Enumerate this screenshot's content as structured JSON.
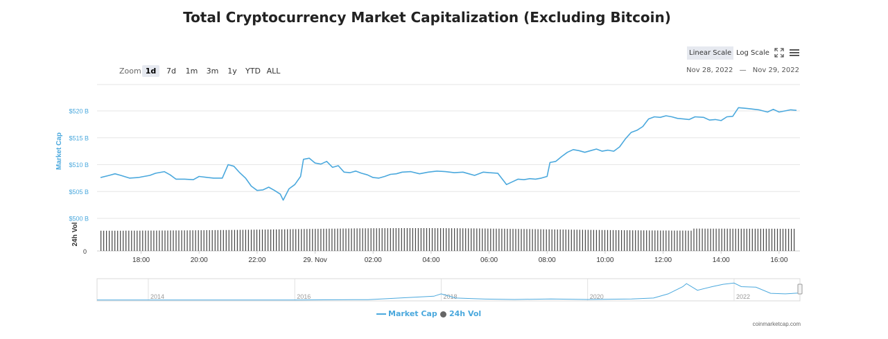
{
  "page": {
    "title": "Total Cryptocurrency Market Capitalization (Excluding Bitcoin)"
  },
  "toolbar": {
    "zoom_label": "Zoom",
    "zoom_buttons": [
      "1d",
      "7d",
      "1m",
      "3m",
      "1y",
      "YTD",
      "ALL"
    ],
    "zoom_active": "1d",
    "linear_scale": "Linear Scale",
    "log_scale": "Log Scale",
    "range_from": "Nov 28, 2022",
    "range_sep": "—",
    "range_to": "Nov 29, 2022"
  },
  "legend": {
    "market_cap": "Market Cap",
    "volume": "24h Vol"
  },
  "credit": "coinmarketcap.com",
  "colors": {
    "market_cap": "#4aa8dd",
    "volume": "#444444",
    "grid": "#e6e6e6",
    "axis_text": "#4aa8dd"
  },
  "chart_data": {
    "type": "line",
    "ylabel": "Market Cap",
    "y_ticks": [
      "$500 B",
      "$505 B",
      "$510 B",
      "$515 B",
      "$520 B"
    ],
    "y_tick_values": [
      500,
      505,
      510,
      515,
      520
    ],
    "ylim": [
      500,
      520.5
    ],
    "x_ticks": [
      "18:00",
      "20:00",
      "22:00",
      "29. Nov",
      "02:00",
      "04:00",
      "06:00",
      "08:00",
      "10:00",
      "12:00",
      "14:00",
      "16:00"
    ],
    "x_tick_hours": [
      18,
      20,
      22,
      24,
      26,
      28,
      30,
      32,
      34,
      36,
      38,
      40
    ],
    "x_range_hours": [
      16.6,
      40.6
    ],
    "series": [
      {
        "name": "Market Cap",
        "points": [
          [
            16.6,
            507.6
          ],
          [
            16.9,
            508.0
          ],
          [
            17.1,
            508.3
          ],
          [
            17.3,
            508.0
          ],
          [
            17.6,
            507.5
          ],
          [
            17.9,
            507.6
          ],
          [
            18.1,
            507.8
          ],
          [
            18.3,
            508.0
          ],
          [
            18.5,
            508.4
          ],
          [
            18.8,
            508.7
          ],
          [
            19.0,
            508.1
          ],
          [
            19.2,
            507.3
          ],
          [
            19.5,
            507.3
          ],
          [
            19.8,
            507.2
          ],
          [
            20.0,
            507.8
          ],
          [
            20.3,
            507.6
          ],
          [
            20.5,
            507.5
          ],
          [
            20.8,
            507.5
          ],
          [
            21.0,
            510.0
          ],
          [
            21.2,
            509.7
          ],
          [
            21.4,
            508.5
          ],
          [
            21.6,
            507.5
          ],
          [
            21.8,
            506.0
          ],
          [
            22.0,
            505.2
          ],
          [
            22.2,
            505.3
          ],
          [
            22.4,
            505.8
          ],
          [
            22.6,
            505.2
          ],
          [
            22.8,
            504.5
          ],
          [
            22.9,
            503.4
          ],
          [
            23.1,
            505.5
          ],
          [
            23.3,
            506.3
          ],
          [
            23.5,
            507.8
          ],
          [
            23.6,
            511.0
          ],
          [
            23.8,
            511.2
          ],
          [
            24.0,
            510.3
          ],
          [
            24.2,
            510.1
          ],
          [
            24.4,
            510.6
          ],
          [
            24.6,
            509.5
          ],
          [
            24.8,
            509.8
          ],
          [
            25.0,
            508.6
          ],
          [
            25.2,
            508.5
          ],
          [
            25.4,
            508.8
          ],
          [
            25.6,
            508.4
          ],
          [
            25.8,
            508.1
          ],
          [
            26.0,
            507.6
          ],
          [
            26.2,
            507.5
          ],
          [
            26.4,
            507.8
          ],
          [
            26.6,
            508.2
          ],
          [
            26.8,
            508.3
          ],
          [
            27.0,
            508.6
          ],
          [
            27.3,
            508.7
          ],
          [
            27.6,
            508.3
          ],
          [
            27.9,
            508.6
          ],
          [
            28.2,
            508.8
          ],
          [
            28.5,
            508.7
          ],
          [
            28.8,
            508.5
          ],
          [
            29.1,
            508.6
          ],
          [
            29.3,
            508.3
          ],
          [
            29.5,
            508.0
          ],
          [
            29.8,
            508.6
          ],
          [
            30.0,
            508.5
          ],
          [
            30.3,
            508.4
          ],
          [
            30.5,
            507.0
          ],
          [
            30.6,
            506.3
          ],
          [
            30.8,
            506.8
          ],
          [
            31.0,
            507.3
          ],
          [
            31.2,
            507.2
          ],
          [
            31.4,
            507.4
          ],
          [
            31.6,
            507.3
          ],
          [
            31.8,
            507.5
          ],
          [
            32.0,
            507.8
          ],
          [
            32.1,
            510.4
          ],
          [
            32.3,
            510.6
          ],
          [
            32.5,
            511.5
          ],
          [
            32.7,
            512.3
          ],
          [
            32.9,
            512.8
          ],
          [
            33.1,
            512.6
          ],
          [
            33.3,
            512.3
          ],
          [
            33.5,
            512.6
          ],
          [
            33.7,
            512.9
          ],
          [
            33.9,
            512.5
          ],
          [
            34.1,
            512.7
          ],
          [
            34.3,
            512.5
          ],
          [
            34.5,
            513.3
          ],
          [
            34.7,
            514.8
          ],
          [
            34.9,
            516.0
          ],
          [
            35.1,
            516.4
          ],
          [
            35.3,
            517.1
          ],
          [
            35.5,
            518.5
          ],
          [
            35.7,
            518.9
          ],
          [
            35.9,
            518.8
          ],
          [
            36.1,
            519.1
          ],
          [
            36.3,
            518.9
          ],
          [
            36.5,
            518.6
          ],
          [
            36.7,
            518.5
          ],
          [
            36.9,
            518.4
          ],
          [
            37.1,
            518.9
          ],
          [
            37.4,
            518.8
          ],
          [
            37.6,
            518.3
          ],
          [
            37.8,
            518.4
          ],
          [
            38.0,
            518.2
          ],
          [
            38.2,
            518.9
          ],
          [
            38.4,
            519.0
          ],
          [
            38.6,
            520.6
          ],
          [
            38.8,
            520.5
          ],
          [
            39.0,
            520.4
          ],
          [
            39.3,
            520.2
          ],
          [
            39.6,
            519.8
          ],
          [
            39.8,
            520.3
          ],
          [
            40.0,
            519.8
          ],
          [
            40.2,
            520.0
          ],
          [
            40.4,
            520.2
          ],
          [
            40.6,
            520.1
          ]
        ]
      },
      {
        "name": "24h Vol",
        "type": "bar",
        "note": "Dense volume bars"
      }
    ],
    "volume_axis": {
      "label": "24h Vol",
      "min_label": "0"
    },
    "navigator": {
      "year_labels": [
        "2014",
        "2016",
        "2018",
        "2020",
        "2022"
      ],
      "year_values": [
        2014,
        2016,
        2018,
        2020,
        2022
      ],
      "x_range_years": [
        2013.3,
        2022.9
      ],
      "points": [
        [
          2013.3,
          0.01
        ],
        [
          2014,
          0.01
        ],
        [
          2015,
          0.01
        ],
        [
          2016,
          0.01
        ],
        [
          2017,
          0.03
        ],
        [
          2017.9,
          0.22
        ],
        [
          2018.0,
          0.35
        ],
        [
          2018.2,
          0.12
        ],
        [
          2018.6,
          0.06
        ],
        [
          2019,
          0.04
        ],
        [
          2019.5,
          0.07
        ],
        [
          2020,
          0.04
        ],
        [
          2020.6,
          0.07
        ],
        [
          2020.9,
          0.12
        ],
        [
          2021.1,
          0.35
        ],
        [
          2021.3,
          0.75
        ],
        [
          2021.35,
          0.92
        ],
        [
          2021.5,
          0.55
        ],
        [
          2021.7,
          0.75
        ],
        [
          2021.85,
          0.88
        ],
        [
          2022.0,
          0.95
        ],
        [
          2022.1,
          0.75
        ],
        [
          2022.3,
          0.72
        ],
        [
          2022.5,
          0.38
        ],
        [
          2022.7,
          0.35
        ],
        [
          2022.9,
          0.4
        ]
      ]
    },
    "grid": true,
    "legend_position": "bottom-center"
  }
}
